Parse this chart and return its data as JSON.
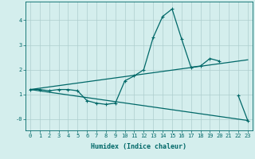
{
  "xlabel": "Humidex (Indice chaleur)",
  "x_values": [
    0,
    1,
    2,
    3,
    4,
    5,
    6,
    7,
    8,
    9,
    10,
    11,
    12,
    13,
    14,
    15,
    16,
    17,
    18,
    19,
    20,
    21,
    22,
    23
  ],
  "line1": [
    1.2,
    1.2,
    1.15,
    1.2,
    1.2,
    1.15,
    0.75,
    0.65,
    0.6,
    0.65,
    1.55,
    1.75,
    2.0,
    3.3,
    4.15,
    4.45,
    3.25,
    2.1,
    2.15,
    2.45,
    2.35,
    null,
    0.95,
    -0.05
  ],
  "line2_straight1": {
    "x": [
      0,
      23
    ],
    "y": [
      1.2,
      2.4
    ]
  },
  "line2_straight2": {
    "x": [
      0,
      23
    ],
    "y": [
      1.2,
      -0.05
    ]
  },
  "bg_color": "#d4eeed",
  "line_color": "#006868",
  "grid_color": "#aecece",
  "ylim": [
    -0.45,
    4.75
  ],
  "xlim": [
    -0.5,
    23.5
  ],
  "yticks": [
    0,
    1,
    2,
    3,
    4
  ],
  "ytick_labels": [
    "-0",
    "1",
    "2",
    "3",
    "4"
  ],
  "xtick_labels": [
    "0",
    "1",
    "2",
    "3",
    "4",
    "5",
    "6",
    "7",
    "8",
    "9",
    "10",
    "11",
    "12",
    "13",
    "14",
    "15",
    "16",
    "17",
    "18",
    "19",
    "20",
    "21",
    "22",
    "23"
  ]
}
